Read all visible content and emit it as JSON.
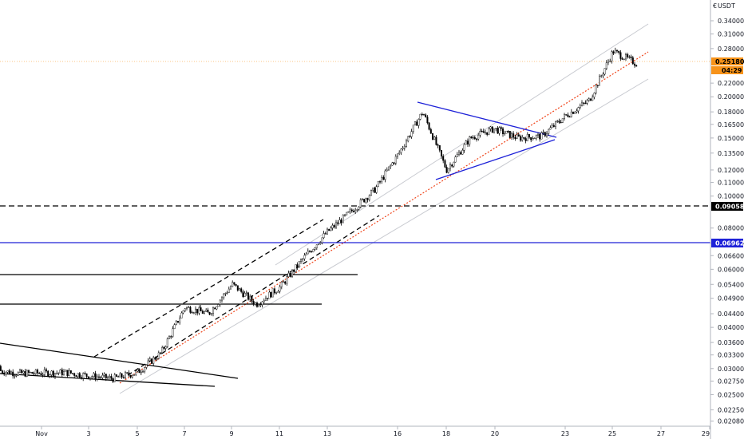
{
  "chart_data": {
    "type": "candlestick",
    "title": "",
    "price_axis_label": "USDT",
    "price_axis_scale": "log",
    "ylim": [
      0.0187,
      0.39
    ],
    "y_ticks": [
      "0.34000",
      "0.31000",
      "0.28000",
      "0.25180",
      "0.22000",
      "0.20000",
      "0.18000",
      "0.16500",
      "0.15000",
      "0.13500",
      "0.12000",
      "0.11000",
      "0.10000",
      "0.09058",
      "0.08000",
      "0.07200",
      "0.06962",
      "0.06600",
      "0.06000",
      "0.05400",
      "0.04900",
      "0.04400",
      "0.04000",
      "0.03600",
      "0.03300",
      "0.03000",
      "0.02750",
      "0.02500",
      "0.02250",
      "0.02080",
      "0.01900"
    ],
    "x_ticks": [
      "Nov",
      "3",
      "5",
      "7",
      "9",
      "11",
      "13",
      "16",
      "18",
      "20",
      "23",
      "25",
      "27",
      "29"
    ],
    "last_price": {
      "label": "0.25180",
      "countdown": "04:29",
      "color": "#f7931a"
    },
    "horizontal_levels": [
      {
        "label": "0.09058",
        "style": "dashed",
        "color": "#000000"
      },
      {
        "label": "0.06962",
        "style": "solid",
        "color": "#1e22d8"
      }
    ],
    "candle_colors": {
      "up": "#ffffff",
      "down": "#000000",
      "wick": "#000000"
    },
    "price_path": [
      {
        "date": "Oct 29",
        "price": 0.0305
      },
      {
        "date": "Oct 31",
        "price": 0.029
      },
      {
        "date": "Nov 2",
        "price": 0.0292
      },
      {
        "date": "Nov 3",
        "price": 0.0285
      },
      {
        "date": "Nov 4",
        "price": 0.028
      },
      {
        "date": "Nov 5",
        "price": 0.0292
      },
      {
        "date": "Nov 6",
        "price": 0.0335
      },
      {
        "date": "Nov 7",
        "price": 0.046
      },
      {
        "date": "Nov 8",
        "price": 0.044
      },
      {
        "date": "Nov 9",
        "price": 0.054
      },
      {
        "date": "Nov 10",
        "price": 0.047
      },
      {
        "date": "Nov 11",
        "price": 0.053
      },
      {
        "date": "Nov 12",
        "price": 0.065
      },
      {
        "date": "Nov 13",
        "price": 0.078
      },
      {
        "date": "Nov 14",
        "price": 0.09
      },
      {
        "date": "Nov 15",
        "price": 0.105
      },
      {
        "date": "Nov 16",
        "price": 0.135
      },
      {
        "date": "Nov 17",
        "price": 0.18
      },
      {
        "date": "Nov 18",
        "price": 0.12
      },
      {
        "date": "Nov 19",
        "price": 0.15
      },
      {
        "date": "Nov 20",
        "price": 0.16
      },
      {
        "date": "Nov 21",
        "price": 0.15
      },
      {
        "date": "Nov 22",
        "price": 0.152
      },
      {
        "date": "Nov 23",
        "price": 0.175
      },
      {
        "date": "Nov 24",
        "price": 0.195
      },
      {
        "date": "Nov 25",
        "price": 0.275
      },
      {
        "date": "Nov 26",
        "price": 0.2518
      }
    ],
    "grid": false,
    "legend": "none"
  }
}
